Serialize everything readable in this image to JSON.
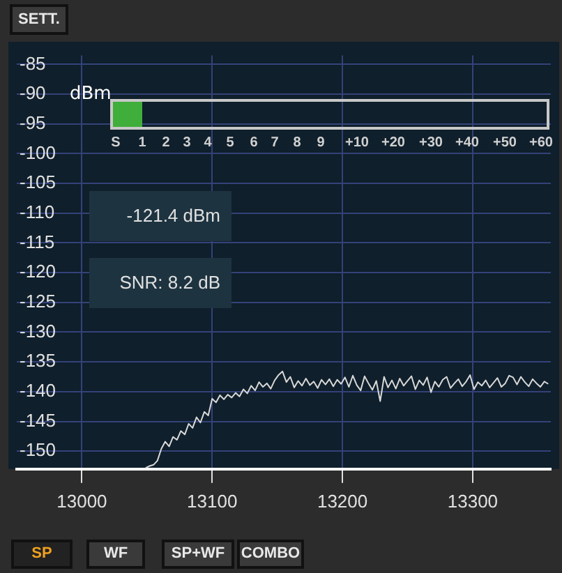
{
  "chart_data": {
    "type": "line",
    "ylabel": "dBm",
    "annotations": [
      "SETT.",
      "SP",
      "WF",
      "SP+WF",
      "COMBO",
      "-121.4 dBm",
      "SNR: 8.2 dB",
      "S",
      "1",
      "2",
      "3",
      "4",
      "5",
      "6",
      "7",
      "8",
      "9",
      "+10",
      "+20",
      "+30",
      "+40",
      "+50",
      "+60"
    ],
    "x": [
      13049,
      13052,
      13055,
      13058,
      13061,
      13064,
      13067,
      13070,
      13073,
      13076,
      13079,
      13082,
      13085,
      13088,
      13091,
      13094,
      13097,
      13100,
      13103,
      13106,
      13109,
      13112,
      13115,
      13118,
      13121,
      13124,
      13127,
      13130,
      13133,
      13136,
      13139,
      13142,
      13145,
      13148,
      13151,
      13154,
      13157,
      13160,
      13163,
      13166,
      13169,
      13172,
      13175,
      13178,
      13181,
      13184,
      13187,
      13190,
      13193,
      13196,
      13199,
      13202,
      13205,
      13208,
      13211,
      13214,
      13217,
      13220,
      13223,
      13226,
      13229,
      13232,
      13235,
      13238,
      13241,
      13244,
      13247,
      13250,
      13253,
      13256,
      13259,
      13262,
      13265,
      13268,
      13271,
      13274,
      13277,
      13280,
      13283,
      13286,
      13289,
      13292,
      13295,
      13298,
      13301,
      13304,
      13307,
      13310,
      13313,
      13316,
      13319,
      13322,
      13325,
      13328,
      13331,
      13334,
      13337,
      13340,
      13343,
      13346,
      13349,
      13352,
      13355,
      13358
    ],
    "series": [
      {
        "color": "#d8d8d8",
        "values": [
          -152.8,
          -152.5,
          -152.3,
          -151.6,
          -149.6,
          -148.4,
          -149.2,
          -147.6,
          -148.1,
          -146.6,
          -147.2,
          -145.4,
          -146.1,
          -144.3,
          -145.2,
          -143.4,
          -144.0,
          -141.2,
          -141.8,
          -140.6,
          -141.3,
          -140.5,
          -141.0,
          -140.2,
          -140.8,
          -139.6,
          -140.3,
          -139.0,
          -139.8,
          -138.4,
          -139.2,
          -138.6,
          -139.5,
          -138.1,
          -137.2,
          -136.6,
          -138.4,
          -137.5,
          -139.3,
          -138.2,
          -139.0,
          -137.8,
          -138.9,
          -138.3,
          -139.4,
          -138.0,
          -138.8,
          -137.9,
          -139.1,
          -138.0,
          -138.7,
          -137.6,
          -139.2,
          -137.3,
          -138.9,
          -139.8,
          -137.4,
          -138.6,
          -139.7,
          -138.2,
          -141.6,
          -137.5,
          -139.3,
          -138.1,
          -139.5,
          -137.8,
          -139.0,
          -138.2,
          -137.4,
          -139.6,
          -138.1,
          -138.9,
          -137.6,
          -140.1,
          -138.3,
          -139.2,
          -138.0,
          -137.5,
          -139.4,
          -138.6,
          -137.9,
          -139.1,
          -138.3,
          -137.2,
          -139.6,
          -138.4,
          -139.0,
          -138.1,
          -139.3,
          -138.5,
          -137.7,
          -139.2,
          -138.6,
          -137.3,
          -137.6,
          -138.8,
          -137.5,
          -138.4,
          -139.1,
          -137.9,
          -138.6,
          -139.2,
          -138.3,
          -138.7
        ]
      }
    ],
    "xlim": [
      12950,
      13360
    ],
    "xticks": [
      13000,
      13100,
      13200,
      13300
    ],
    "ylim": [
      -153,
      -83.5
    ],
    "yticks": [
      -150,
      -145,
      -140,
      -135,
      -130,
      -125,
      -120,
      -115,
      -110,
      -105,
      -100,
      -95,
      -90,
      -85
    ],
    "grid": true,
    "legend": false,
    "marker": "none",
    "line_style": "solid"
  }
}
